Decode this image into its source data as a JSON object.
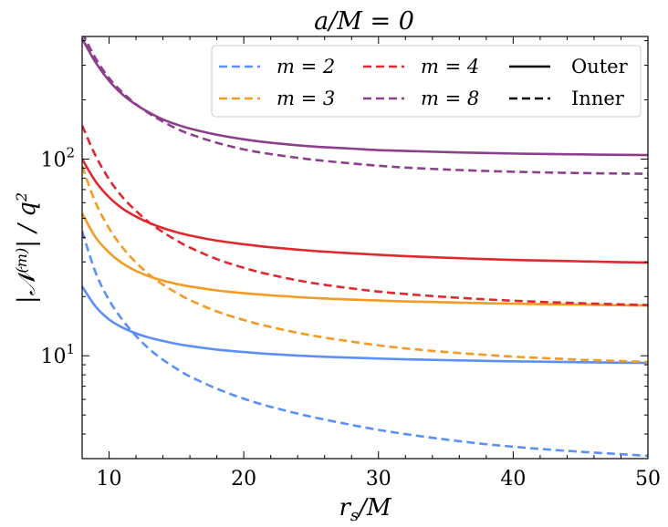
{
  "chart_data": {
    "type": "line",
    "title": "a/M = 0",
    "xlabel": "r_s/M",
    "xlabel_main": "r",
    "xlabel_sub": "s",
    "xlabel_rest": "/M",
    "ylabel": "|𝒩^(m)| / q²",
    "ylabel_parts": {
      "open": "|𝒩",
      "sup": "(m)",
      "close": "| / q",
      "sup2": "2"
    },
    "yscale": "log",
    "xlim": [
      8,
      50
    ],
    "ylim": [
      3.0,
      420
    ],
    "x_ticks": [
      10,
      20,
      30,
      40,
      50
    ],
    "x_tick_labels": [
      "10",
      "20",
      "30",
      "40",
      "50"
    ],
    "y_major_ticks": [
      10,
      100
    ],
    "y_tick_labels": [
      {
        "value": 10,
        "base": "10",
        "exp": "1"
      },
      {
        "value": 100,
        "base": "10",
        "exp": "2"
      }
    ],
    "x": [
      8,
      9,
      10,
      11,
      12,
      13,
      14,
      15,
      16,
      18,
      20,
      22,
      25,
      28,
      30,
      32,
      35,
      38,
      40,
      42,
      45,
      48,
      50
    ],
    "series": [
      {
        "name": "m = 2",
        "style": "Outer",
        "color": "#5b8ff9",
        "values": [
          22.5,
          17.8,
          15.3,
          13.9,
          13.0,
          12.35,
          11.9,
          11.5,
          11.2,
          10.75,
          10.45,
          10.2,
          9.95,
          9.78,
          9.68,
          9.6,
          9.5,
          9.42,
          9.37,
          9.33,
          9.27,
          9.22,
          9.2
        ]
      },
      {
        "name": "m = 2",
        "style": "Inner",
        "color": "#5b8ff9",
        "values": [
          43,
          26.5,
          19.2,
          15.2,
          12.6,
          10.8,
          9.55,
          8.6,
          7.85,
          6.8,
          6.05,
          5.5,
          4.9,
          4.45,
          4.2,
          4.0,
          3.75,
          3.55,
          3.45,
          3.36,
          3.25,
          3.16,
          3.1
        ]
      },
      {
        "name": "m = 3",
        "style": "Outer",
        "color": "#f59a23",
        "values": [
          53,
          40,
          33.5,
          29.5,
          27.0,
          25.3,
          24.1,
          23.2,
          22.5,
          21.5,
          20.8,
          20.3,
          19.7,
          19.3,
          19.1,
          18.9,
          18.7,
          18.5,
          18.4,
          18.3,
          18.2,
          18.05,
          18.0
        ]
      },
      {
        "name": "m = 3",
        "style": "Inner",
        "color": "#f59a23",
        "values": [
          92,
          60,
          44.5,
          35.5,
          29.8,
          25.8,
          23.0,
          20.9,
          19.2,
          16.8,
          15.2,
          14.0,
          12.7,
          11.8,
          11.3,
          10.9,
          10.45,
          10.1,
          9.9,
          9.75,
          9.55,
          9.4,
          9.3
        ]
      },
      {
        "name": "m = 4",
        "style": "Outer",
        "color": "#e0282e",
        "values": [
          100,
          77,
          64,
          56,
          51,
          47.3,
          44.6,
          42.5,
          40.9,
          38.5,
          36.9,
          35.6,
          34.2,
          33.2,
          32.6,
          32.1,
          31.5,
          31.0,
          30.7,
          30.5,
          30.2,
          29.9,
          29.8
        ]
      },
      {
        "name": "m = 4",
        "style": "Inner",
        "color": "#e0282e",
        "values": [
          148,
          104,
          79,
          64,
          54.5,
          47.5,
          42.5,
          38.6,
          35.5,
          31.0,
          28.0,
          25.8,
          23.5,
          22.0,
          21.2,
          20.6,
          19.9,
          19.35,
          19.05,
          18.8,
          18.5,
          18.25,
          18.1
        ]
      },
      {
        "name": "m = 8",
        "style": "Outer",
        "color": "#8c3f8a",
        "values": [
          410,
          310,
          250,
          213,
          189,
          172,
          159,
          150,
          143,
          133,
          126,
          121,
          116,
          113,
          111,
          110,
          108.5,
          107.3,
          106.7,
          106.2,
          105.6,
          105.1,
          104.8
        ]
      },
      {
        "name": "m = 8",
        "style": "Inner",
        "color": "#8c3f8a",
        "values": [
          440,
          325,
          258,
          218,
          190,
          170,
          155,
          143,
          134,
          121,
          112,
          106,
          99.5,
          95,
          92.5,
          90.5,
          88.5,
          87,
          86.2,
          85.6,
          84.9,
          84.4,
          84.2
        ]
      }
    ],
    "legend": {
      "placement": "top-right",
      "entries": [
        {
          "label": "m = 2",
          "color": "#5b8ff9",
          "dash": true
        },
        {
          "label": "m = 3",
          "color": "#f59a23",
          "dash": true
        },
        {
          "label": "m = 4",
          "color": "#e0282e",
          "dash": true
        },
        {
          "label": "m = 8",
          "color": "#8c3f8a",
          "dash": true
        },
        {
          "label": "Outer",
          "color": "#000000",
          "dash": false
        },
        {
          "label": "Inner",
          "color": "#000000",
          "dash": true
        }
      ]
    }
  }
}
